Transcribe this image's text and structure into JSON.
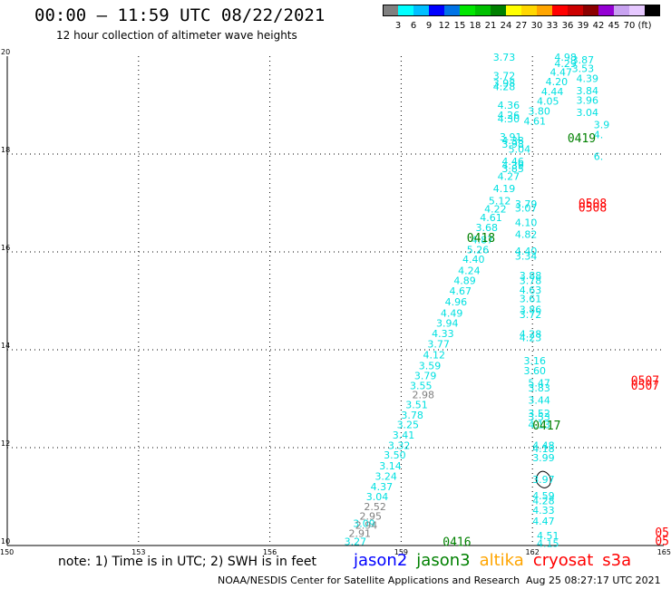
{
  "header": {
    "title": "00:00 – 11:59 UTC 08/22/2021",
    "subtitle": "12 hour collection of altimeter wave heights"
  },
  "colorbar": {
    "colors": [
      "#808080",
      "#00ffff",
      "#00bfff",
      "#0000ff",
      "#0073e6",
      "#00e600",
      "#00c000",
      "#008000",
      "#ffff00",
      "#ffd700",
      "#ffa500",
      "#ff0000",
      "#cc0000",
      "#8b0000",
      "#9400d3",
      "#c8a2f0",
      "#e6c8ff",
      "#000000"
    ],
    "labels": [
      "3",
      "6",
      "9",
      "12",
      "15",
      "18",
      "21",
      "24",
      "27",
      "30",
      "33",
      "36",
      "39",
      "42",
      "45",
      "70"
    ],
    "unit": "(ft)"
  },
  "chart_data": {
    "type": "scatter",
    "xlim": [
      150,
      165
    ],
    "ylim": [
      10,
      20
    ],
    "x_ticks": [
      "150",
      "153",
      "156",
      "159",
      "162",
      "165"
    ],
    "y_ticks": [
      "20",
      "18",
      "16",
      "14",
      "12",
      "10"
    ],
    "grid": true,
    "series": [
      {
        "name": "jason3",
        "color": "#008000",
        "labels": [
          {
            "x": 162.8,
            "y": 18.33,
            "text": "0419"
          },
          {
            "x": 160.5,
            "y": 16.3,
            "text": "0418"
          },
          {
            "x": 162.0,
            "y": 12.46,
            "text": "0417"
          },
          {
            "x": 159.95,
            "y": 10.08,
            "text": "0416"
          }
        ]
      },
      {
        "name": "cryosat",
        "color": "#ff0000",
        "labels": [
          {
            "x": 163.05,
            "y": 17.0,
            "text": "0508"
          },
          {
            "x": 163.05,
            "y": 16.92,
            "text": "0508"
          },
          {
            "x": 164.25,
            "y": 13.38,
            "text": "0507"
          },
          {
            "x": 164.25,
            "y": 13.28,
            "text": "0507"
          },
          {
            "x": 164.8,
            "y": 10.28,
            "text": "05"
          },
          {
            "x": 164.8,
            "y": 10.1,
            "text": "05"
          }
        ]
      }
    ],
    "track_a": {
      "color": "#00e0e0",
      "values": [
        {
          "x": 161.1,
          "y": 19.98,
          "v": "3.73"
        },
        {
          "x": 161.1,
          "y": 19.6,
          "v": "3.72"
        },
        {
          "x": 161.1,
          "y": 19.45,
          "v": "3.98"
        },
        {
          "x": 161.1,
          "y": 19.38,
          "v": "4.28"
        },
        {
          "x": 161.2,
          "y": 19.0,
          "v": "4.36"
        },
        {
          "x": 161.2,
          "y": 18.8,
          "v": "4.26"
        },
        {
          "x": 161.2,
          "y": 18.72,
          "v": "4.30"
        },
        {
          "x": 161.25,
          "y": 18.35,
          "v": "3.91"
        },
        {
          "x": 161.3,
          "y": 18.28,
          "v": "4.38"
        },
        {
          "x": 161.3,
          "y": 18.2,
          "v": "3.98"
        },
        {
          "x": 161.45,
          "y": 18.1,
          "v": "5.04"
        },
        {
          "x": 161.3,
          "y": 17.85,
          "v": "4.46"
        },
        {
          "x": 161.3,
          "y": 17.77,
          "v": "4.39"
        },
        {
          "x": 161.3,
          "y": 17.7,
          "v": "3.85"
        },
        {
          "x": 161.2,
          "y": 17.55,
          "v": "4.27"
        },
        {
          "x": 161.1,
          "y": 17.3,
          "v": "4.19"
        },
        {
          "x": 161.0,
          "y": 17.05,
          "v": "5.12"
        },
        {
          "x": 160.9,
          "y": 16.88,
          "v": "4.22"
        },
        {
          "x": 160.8,
          "y": 16.7,
          "v": "4.61"
        },
        {
          "x": 160.7,
          "y": 16.5,
          "v": "3.68"
        },
        {
          "x": 160.6,
          "y": 16.25,
          "v": "4.87"
        },
        {
          "x": 160.5,
          "y": 16.05,
          "v": "5.26"
        },
        {
          "x": 160.4,
          "y": 15.85,
          "v": "4.40"
        },
        {
          "x": 160.3,
          "y": 15.62,
          "v": "4.24"
        },
        {
          "x": 160.2,
          "y": 15.42,
          "v": "4.89"
        },
        {
          "x": 160.1,
          "y": 15.2,
          "v": "4.67"
        },
        {
          "x": 160.0,
          "y": 14.98,
          "v": "4.96"
        },
        {
          "x": 159.9,
          "y": 14.75,
          "v": "4.49"
        },
        {
          "x": 159.8,
          "y": 14.55,
          "v": "3.94"
        },
        {
          "x": 159.7,
          "y": 14.33,
          "v": "4.33"
        },
        {
          "x": 159.6,
          "y": 14.12,
          "v": "3.77"
        },
        {
          "x": 159.5,
          "y": 13.9,
          "v": "4.12"
        },
        {
          "x": 159.4,
          "y": 13.68,
          "v": "3.59"
        },
        {
          "x": 159.3,
          "y": 13.47,
          "v": "3.79"
        },
        {
          "x": 159.2,
          "y": 13.27,
          "v": "3.55"
        },
        {
          "x": 159.1,
          "y": 12.88,
          "v": "3.51"
        },
        {
          "x": 159.0,
          "y": 12.67,
          "v": "3.78"
        },
        {
          "x": 158.9,
          "y": 12.47,
          "v": "3.25"
        },
        {
          "x": 158.8,
          "y": 12.26,
          "v": "3.41"
        },
        {
          "x": 158.7,
          "y": 12.05,
          "v": "3.32"
        },
        {
          "x": 158.6,
          "y": 11.85,
          "v": "3.50"
        },
        {
          "x": 158.5,
          "y": 11.63,
          "v": "3.14"
        },
        {
          "x": 158.4,
          "y": 11.42,
          "v": "3.24"
        },
        {
          "x": 158.3,
          "y": 11.2,
          "v": "4.37"
        },
        {
          "x": 158.2,
          "y": 11.0,
          "v": "3.04"
        },
        {
          "x": 157.9,
          "y": 10.45,
          "v": "3.09"
        },
        {
          "x": 157.7,
          "y": 10.08,
          "v": "3.27"
        }
      ]
    },
    "track_a_gray": {
      "color": "#808080",
      "values": [
        {
          "x": 159.25,
          "y": 13.08,
          "v": "2.98"
        },
        {
          "x": 158.15,
          "y": 10.8,
          "v": "2.52"
        },
        {
          "x": 158.05,
          "y": 10.6,
          "v": "2.95"
        },
        {
          "x": 157.95,
          "y": 10.42,
          "v": "2.94"
        },
        {
          "x": 157.8,
          "y": 10.25,
          "v": "2.91"
        }
      ]
    },
    "track_b": {
      "color": "#00e0e0",
      "values": [
        {
          "x": 162.5,
          "y": 19.98,
          "v": "4.98"
        },
        {
          "x": 162.9,
          "y": 19.93,
          "v": "3.87"
        },
        {
          "x": 162.5,
          "y": 19.85,
          "v": "4.29"
        },
        {
          "x": 162.9,
          "y": 19.75,
          "v": "3.53"
        },
        {
          "x": 162.4,
          "y": 19.68,
          "v": "4.47"
        },
        {
          "x": 163.0,
          "y": 19.55,
          "v": "4.39"
        },
        {
          "x": 162.3,
          "y": 19.48,
          "v": "4.20"
        },
        {
          "x": 163.0,
          "y": 19.3,
          "v": "3.84"
        },
        {
          "x": 162.2,
          "y": 19.28,
          "v": "4.44"
        },
        {
          "x": 163.0,
          "y": 19.1,
          "v": "3.96"
        },
        {
          "x": 162.1,
          "y": 19.08,
          "v": "4.05"
        },
        {
          "x": 161.9,
          "y": 18.88,
          "v": "3.80"
        },
        {
          "x": 163.0,
          "y": 18.85,
          "v": "3.04"
        },
        {
          "x": 161.8,
          "y": 18.68,
          "v": "4.61"
        },
        {
          "x": 163.4,
          "y": 18.6,
          "v": "3.9"
        },
        {
          "x": 163.4,
          "y": 18.4,
          "v": "4."
        },
        {
          "x": 163.4,
          "y": 17.95,
          "v": "6."
        },
        {
          "x": 161.6,
          "y": 16.98,
          "v": "3.79"
        },
        {
          "x": 161.6,
          "y": 16.9,
          "v": "3.07"
        },
        {
          "x": 161.6,
          "y": 16.6,
          "v": "4.10"
        },
        {
          "x": 161.6,
          "y": 16.36,
          "v": "4.82"
        },
        {
          "x": 161.6,
          "y": 16.02,
          "v": "4.40"
        },
        {
          "x": 161.6,
          "y": 15.92,
          "v": "3.34"
        },
        {
          "x": 161.7,
          "y": 15.52,
          "v": "3.88"
        },
        {
          "x": 161.7,
          "y": 15.42,
          "v": "3.78"
        },
        {
          "x": 161.7,
          "y": 15.22,
          "v": "4.63"
        },
        {
          "x": 161.7,
          "y": 15.05,
          "v": "3.61"
        },
        {
          "x": 161.7,
          "y": 14.82,
          "v": "3.86"
        },
        {
          "x": 161.7,
          "y": 14.72,
          "v": "3.72"
        },
        {
          "x": 161.7,
          "y": 14.32,
          "v": "4.28"
        },
        {
          "x": 161.7,
          "y": 14.25,
          "v": "4.23"
        },
        {
          "x": 161.8,
          "y": 13.78,
          "v": "3.16"
        },
        {
          "x": 161.8,
          "y": 13.57,
          "v": "3.60"
        },
        {
          "x": 161.9,
          "y": 13.32,
          "v": "5.47"
        },
        {
          "x": 161.9,
          "y": 13.22,
          "v": "3.83"
        },
        {
          "x": 161.9,
          "y": 12.97,
          "v": "3.44"
        },
        {
          "x": 161.9,
          "y": 12.7,
          "v": "3.52"
        },
        {
          "x": 161.9,
          "y": 12.63,
          "v": "3.53"
        },
        {
          "x": 161.9,
          "y": 12.47,
          "v": "4.13"
        },
        {
          "x": 162.0,
          "y": 12.05,
          "v": "4.48"
        },
        {
          "x": 162.0,
          "y": 11.98,
          "v": "4.18"
        },
        {
          "x": 162.0,
          "y": 11.8,
          "v": "3.99"
        },
        {
          "x": 162.0,
          "y": 11.35,
          "v": "3.97"
        },
        {
          "x": 162.0,
          "y": 11.02,
          "v": "4.59"
        },
        {
          "x": 162.0,
          "y": 10.92,
          "v": "4.28"
        },
        {
          "x": 162.0,
          "y": 10.72,
          "v": "4.33"
        },
        {
          "x": 162.0,
          "y": 10.5,
          "v": "4.47"
        },
        {
          "x": 162.1,
          "y": 10.2,
          "v": "4.51"
        },
        {
          "x": 162.1,
          "y": 10.05,
          "v": "4.15"
        }
      ]
    }
  },
  "note": "note: 1) Time is in UTC; 2) SWH is in feet",
  "legend": [
    {
      "name": "jason2",
      "color": "#0000ff"
    },
    {
      "name": "jason3",
      "color": "#008000"
    },
    {
      "name": "altika",
      "color": "#ffa500"
    },
    {
      "name": "cryosat",
      "color": "#ff0000"
    },
    {
      "name": "s3a",
      "color": "#ff0000"
    }
  ],
  "footer": {
    "credit": "NOAA/NESDIS Center for Satellite Applications and Research",
    "timestamp": "Aug 25 08:27:17 UTC 2021"
  }
}
